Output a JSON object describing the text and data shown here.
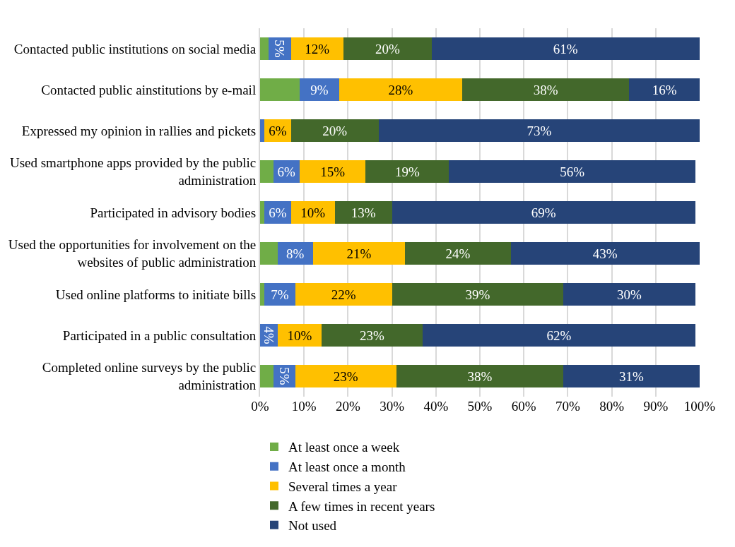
{
  "chart_data": {
    "type": "bar",
    "orientation": "horizontal",
    "stacked": true,
    "categories": [
      "Contacted public institutions on social media",
      "Contacted public ainstitutions by e-mail",
      "Expressed my opinion in rallies and pickets",
      "Used smartphone apps provided by the public administration",
      "Participated in advisory bodies",
      "Used the opportunities for involvement on the websites of public administration",
      "Used online platforms to initiate bills",
      "Participated in a public consultation",
      "Completed online surveys by the public administration"
    ],
    "series": [
      {
        "name": "At least once a week",
        "color": "#70ad47",
        "values": [
          2,
          9,
          0,
          3,
          1,
          4,
          1,
          0,
          3
        ],
        "value_labels": [
          null,
          null,
          null,
          null,
          null,
          null,
          null,
          null,
          null
        ]
      },
      {
        "name": "At least once a month",
        "color": "#4472c4",
        "values": [
          5,
          9,
          1,
          6,
          6,
          8,
          7,
          4,
          5
        ],
        "value_labels": [
          "5%",
          "9%",
          null,
          "6%",
          "6%",
          "8%",
          "7%",
          "4%",
          "5%"
        ]
      },
      {
        "name": "Several times a year",
        "color": "#ffc000",
        "values": [
          12,
          28,
          6,
          15,
          10,
          21,
          22,
          10,
          23
        ],
        "value_labels": [
          "12%",
          "28%",
          "6%",
          "15%",
          "10%",
          "21%",
          "22%",
          "10%",
          "23%"
        ]
      },
      {
        "name": "A few times in recent years",
        "color": "#43682b",
        "values": [
          20,
          38,
          20,
          19,
          13,
          24,
          39,
          23,
          38
        ],
        "value_labels": [
          "20%",
          "38%",
          "20%",
          "19%",
          "13%",
          "24%",
          "39%",
          "23%",
          "38%"
        ]
      },
      {
        "name": "Not used",
        "color": "#264478",
        "values": [
          61,
          16,
          73,
          56,
          69,
          43,
          30,
          62,
          31
        ],
        "value_labels": [
          "61%",
          "16%",
          "73%",
          "56%",
          "69%",
          "43%",
          "30%",
          "62%",
          "31%"
        ]
      }
    ],
    "xlim": [
      0,
      100
    ],
    "xticks": [
      {
        "value": 0,
        "label": "0%"
      },
      {
        "value": 10,
        "label": "10%"
      },
      {
        "value": 20,
        "label": "20%"
      },
      {
        "value": 30,
        "label": "30%"
      },
      {
        "value": 40,
        "label": "40%"
      },
      {
        "value": 50,
        "label": "50%"
      },
      {
        "value": 60,
        "label": "60%"
      },
      {
        "value": 70,
        "label": "70%"
      },
      {
        "value": 80,
        "label": "80%"
      },
      {
        "value": 90,
        "label": "90%"
      },
      {
        "value": 100,
        "label": "100%"
      }
    ],
    "grid": "x",
    "legend": "bottom"
  }
}
